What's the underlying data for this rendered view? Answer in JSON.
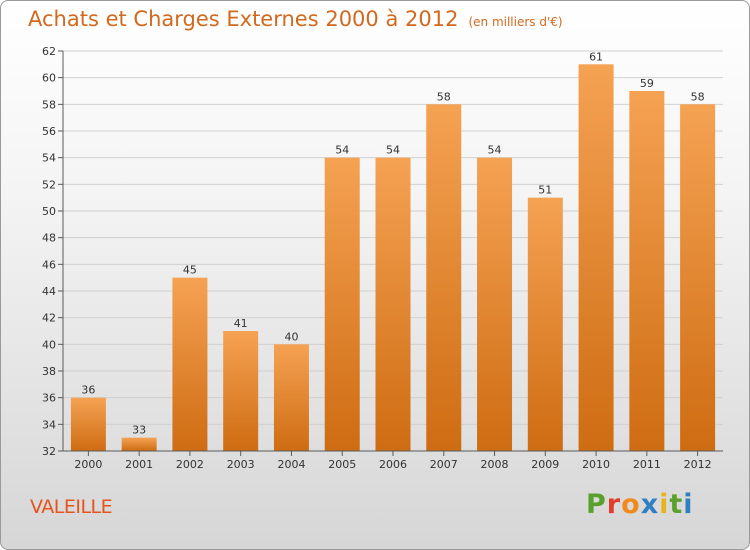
{
  "header": {
    "title": "Achats et Charges Externes 2000 à 2012",
    "unit": "(en milliers d'€)"
  },
  "footer": {
    "commune": "VALEILLE",
    "logo_letters": [
      "P",
      "r",
      "o",
      "x",
      "i",
      "t",
      "i"
    ]
  },
  "colors": {
    "bar_top": "#f5a253",
    "bar_bottom": "#ce6c12",
    "title": "#d2691e",
    "commune": "#e4541b",
    "grid": "#d0d0d0",
    "axis": "#5a5a5a",
    "logo": [
      "#5aa02c",
      "#e33b2c",
      "#f08a1c",
      "#2f7fc1",
      "#e8b31f",
      "#5aa02c",
      "#2f7fc1"
    ]
  },
  "chart_data": {
    "type": "bar",
    "title": "Achats et Charges Externes 2000 à 2012",
    "subtitle": "(en milliers d'€)",
    "categories": [
      "2000",
      "2001",
      "2002",
      "2003",
      "2004",
      "2005",
      "2006",
      "2007",
      "2008",
      "2009",
      "2010",
      "2011",
      "2012"
    ],
    "values": [
      36,
      33,
      45,
      41,
      40,
      54,
      54,
      58,
      54,
      51,
      61,
      59,
      58
    ],
    "ylim": [
      32,
      62
    ],
    "yticks": [
      32,
      34,
      36,
      38,
      40,
      42,
      44,
      46,
      48,
      50,
      52,
      54,
      56,
      58,
      60,
      62
    ],
    "grid": true,
    "data_labels": true
  }
}
